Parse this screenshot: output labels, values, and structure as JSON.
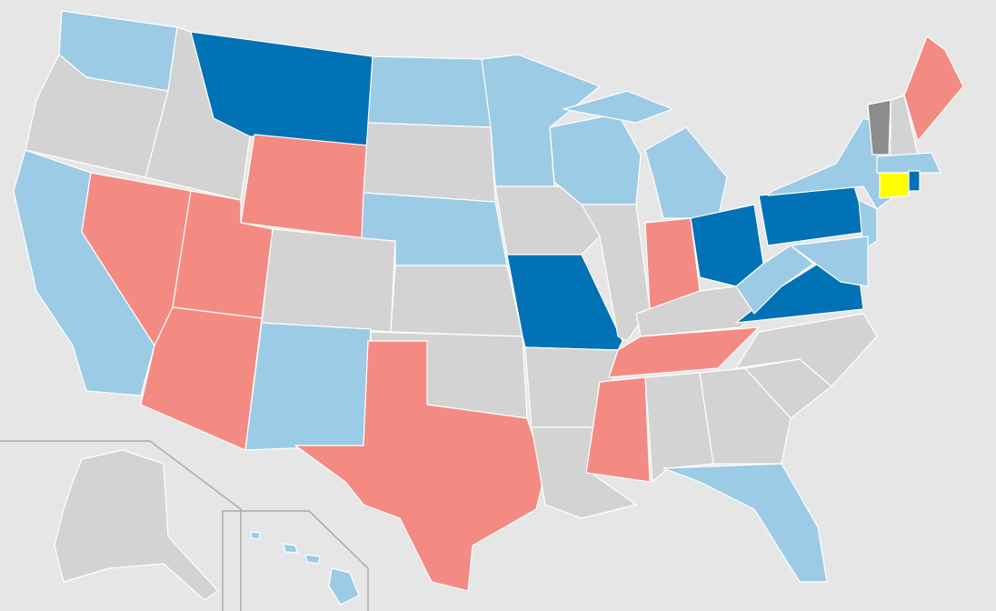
{
  "map": {
    "palette": [
      "#0072b5",
      "#9ccbe6",
      "#f48b82",
      "#d3d3d3",
      "#8c8c8c",
      "#ffff00"
    ],
    "background": "#e6e6e6",
    "border": "#ffffff"
  }
}
